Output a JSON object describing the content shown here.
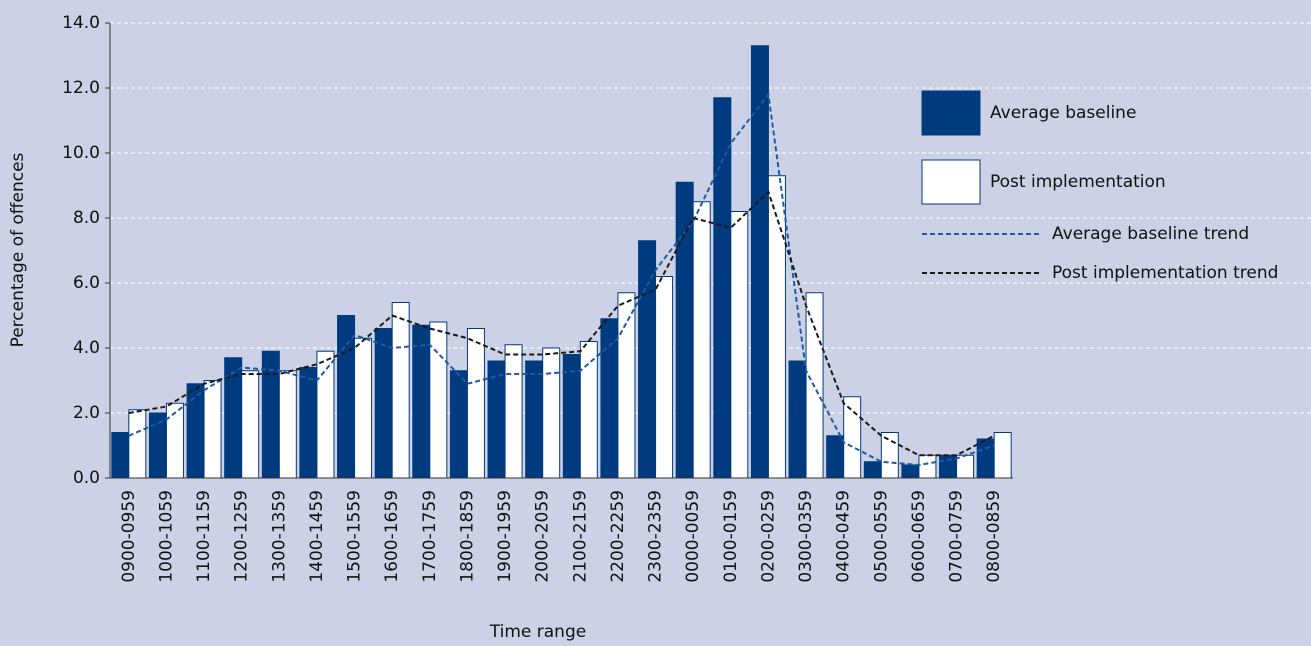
{
  "chart_data": {
    "type": "bar",
    "x_label": "Time range",
    "y_label": "Percentage of offences",
    "categories": [
      "0900-0959",
      "1000-1059",
      "1100-1159",
      "1200-1259",
      "1300-1359",
      "1400-1459",
      "1500-1559",
      "1600-1659",
      "1700-1759",
      "1800-1859",
      "1900-1959",
      "2000-2059",
      "2100-2159",
      "2200-2259",
      "2300-2359",
      "0000-0059",
      "0100-0159",
      "0200-0259",
      "0300-0359",
      "0400-0459",
      "0500-0559",
      "0600-0659",
      "0700-0759",
      "0800-0859"
    ],
    "series": [
      {
        "name": "Average baseline",
        "type": "bar",
        "color": "#003a7f",
        "values": [
          1.4,
          2.0,
          2.9,
          3.7,
          3.9,
          3.4,
          5.0,
          4.6,
          4.7,
          3.3,
          3.6,
          3.6,
          3.8,
          4.9,
          7.3,
          9.1,
          11.7,
          13.3,
          3.6,
          1.3,
          0.5,
          0.4,
          0.7,
          1.2
        ]
      },
      {
        "name": "Post implementation",
        "type": "bar",
        "color": "#ffffff",
        "values": [
          2.1,
          2.3,
          3.0,
          3.3,
          3.3,
          3.9,
          4.3,
          5.4,
          4.8,
          4.6,
          4.1,
          4.0,
          4.2,
          5.7,
          6.2,
          8.5,
          8.2,
          9.3,
          5.7,
          2.5,
          1.4,
          0.7,
          0.7,
          1.4
        ]
      },
      {
        "name": "Average baseline trend",
        "type": "line",
        "color": "#1f5aa6",
        "values": [
          1.3,
          1.8,
          2.7,
          3.4,
          3.3,
          3.0,
          4.4,
          4.0,
          4.1,
          2.9,
          3.2,
          3.2,
          3.3,
          4.3,
          6.4,
          7.9,
          10.3,
          11.8,
          3.3,
          1.1,
          0.5,
          0.4,
          0.6,
          1.0
        ]
      },
      {
        "name": "Post implementation trend",
        "type": "line",
        "color": "#1a1a1a",
        "values": [
          2.0,
          2.2,
          2.9,
          3.2,
          3.2,
          3.5,
          4.0,
          5.0,
          4.6,
          4.3,
          3.8,
          3.8,
          3.9,
          5.3,
          5.8,
          8.0,
          7.7,
          8.8,
          5.3,
          2.3,
          1.3,
          0.7,
          0.7,
          1.3
        ]
      }
    ],
    "ylim": [
      0,
      14
    ],
    "yticks": [
      {
        "value": 0,
        "label": "0.0"
      },
      {
        "value": 2,
        "label": "2.0"
      },
      {
        "value": 4,
        "label": "4.0"
      },
      {
        "value": 6,
        "label": "6.0"
      },
      {
        "value": 8,
        "label": "8.0"
      },
      {
        "value": 10,
        "label": "10.0"
      },
      {
        "value": 12,
        "label": "12.0"
      },
      {
        "value": 14,
        "label": "14.0"
      }
    ],
    "grid": true
  }
}
